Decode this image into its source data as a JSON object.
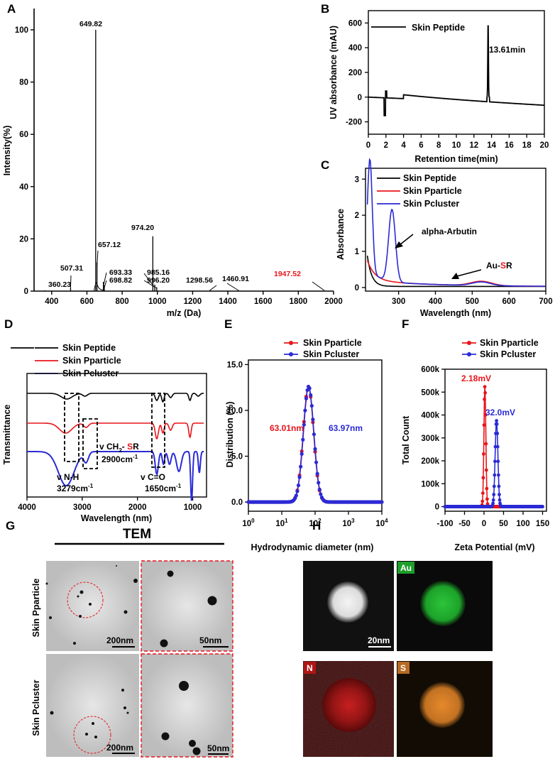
{
  "panels": {
    "a": "A",
    "b": "B",
    "c": "C",
    "d": "D",
    "e": "E",
    "f": "F",
    "g": "G",
    "h": "H"
  },
  "chart_data": [
    {
      "panel": "A",
      "type": "bar",
      "xlabel": "m/z (Da)",
      "ylabel": "Intensity(%)",
      "xlim": [
        300,
        2000
      ],
      "ylim": [
        0,
        100
      ],
      "xticks": [
        400,
        600,
        800,
        1000,
        1200,
        1400,
        1600,
        1800,
        2000
      ],
      "yticks": [
        0,
        20,
        40,
        60,
        80,
        100
      ],
      "peaks": [
        {
          "x": 360.23,
          "y": 0.3,
          "label": "360.23",
          "highlight": false
        },
        {
          "x": 507.31,
          "y": 1.2,
          "label": "507.31",
          "highlight": false
        },
        {
          "x": 649.82,
          "y": 100,
          "label": "649.82",
          "highlight": false
        },
        {
          "x": 657.12,
          "y": 11,
          "label": "657.12",
          "highlight": false
        },
        {
          "x": 693.33,
          "y": 3.5,
          "label": "693.33",
          "highlight": false
        },
        {
          "x": 698.82,
          "y": 2.2,
          "label": "698.82",
          "highlight": false
        },
        {
          "x": 974.2,
          "y": 21,
          "label": "974.20",
          "highlight": false
        },
        {
          "x": 985.16,
          "y": 2.5,
          "label": "985.16",
          "highlight": false
        },
        {
          "x": 996.2,
          "y": 1.5,
          "label": "996.20",
          "highlight": false
        },
        {
          "x": 1298.56,
          "y": 0.4,
          "label": "1298.56",
          "highlight": false
        },
        {
          "x": 1460.91,
          "y": 0.3,
          "label": "1460.91",
          "highlight": false
        },
        {
          "x": 1947.52,
          "y": 0.2,
          "label": "1947.52",
          "highlight": false
        }
      ],
      "highlight_color": "#e8141b"
    },
    {
      "panel": "B",
      "type": "line",
      "xlabel": "Retention time(min)",
      "ylabel": "UV absorbance (mAU)",
      "xlim": [
        0,
        20
      ],
      "ylim": [
        -300,
        700
      ],
      "xticks": [
        0,
        2,
        4,
        6,
        8,
        10,
        12,
        14,
        16,
        18,
        20
      ],
      "yticks": [
        -200,
        0,
        200,
        400,
        600
      ],
      "series": [
        {
          "name": "Skin Peptide",
          "color": "#000000"
        }
      ],
      "annotation": "13.61min"
    },
    {
      "panel": "C",
      "type": "line",
      "xlabel": "Wavelength (nm)",
      "ylabel": "Absorbance",
      "xlim": [
        210,
        700
      ],
      "ylim": [
        -0.1,
        3.3
      ],
      "xticks": [
        300,
        400,
        500,
        600,
        700
      ],
      "yticks": [
        0,
        1,
        2,
        3
      ],
      "series": [
        {
          "name": "Skin Peptide",
          "color": "#000000"
        },
        {
          "name": "Skin Pparticle",
          "color": "#e8141b"
        },
        {
          "name": "Skin Pcluster",
          "color": "#2a2ad6"
        }
      ],
      "annotations": [
        "alpha-Arbutin",
        "Au-",
        "S",
        "R"
      ]
    },
    {
      "panel": "D",
      "type": "line",
      "xlabel": "Wavelength (nm)",
      "ylabel": "Transmittance",
      "xlim": [
        4000,
        750
      ],
      "xticks": [
        4000,
        3000,
        2000,
        1000
      ],
      "series": [
        {
          "name": "Skin Peptide",
          "color": "#000000"
        },
        {
          "name": "Skin Pparticle",
          "color": "#e8141b"
        },
        {
          "name": "Skin Pcluster",
          "color": "#2a2ad6"
        }
      ],
      "annotations": [
        "v N-H",
        "3279cm",
        "-1",
        "v CH",
        "2",
        "- ",
        "S",
        "R",
        "2900cm",
        "-1",
        "v C=O",
        "1650cm",
        "-1"
      ]
    },
    {
      "panel": "E",
      "type": "scatter",
      "xlabel": "Hydrodynamic diameter (nm)",
      "ylabel": "Distribution (%)",
      "xscale": "log",
      "xlim": [
        1,
        10000
      ],
      "ylim": [
        -1,
        15.5
      ],
      "xticks": [
        "10",
        "10",
        "10",
        "10",
        "10"
      ],
      "xtick_exp": [
        "0",
        "1",
        "2",
        "3",
        "4"
      ],
      "yticks": [
        "0.0",
        "5.0",
        "10.0",
        "15.0"
      ],
      "series": [
        {
          "name": "Skin Pparticle",
          "color": "#e8141b",
          "peak": 63.01,
          "label": "63.01nm"
        },
        {
          "name": "Skin Pcluster",
          "color": "#2a2ad6",
          "peak": 63.97,
          "label": "63.97nm"
        }
      ]
    },
    {
      "panel": "F",
      "type": "scatter",
      "xlabel": "Zeta Potential (mV)",
      "ylabel": "Total Count",
      "xlim": [
        -100,
        160
      ],
      "ylim": [
        -20000,
        600000
      ],
      "xticks": [
        -100,
        -50,
        0,
        50,
        100,
        150
      ],
      "yticks": [
        "0",
        "100k",
        "200k",
        "300k",
        "400k",
        "500k",
        "600k"
      ],
      "series": [
        {
          "name": "Skin Pparticle",
          "color": "#e8141b",
          "peak_x": 2.18,
          "peak_y": 525000,
          "label": "2.18mV"
        },
        {
          "name": "Skin Pcluster",
          "color": "#2a2ad6",
          "peak_x": 32.0,
          "peak_y": 375000,
          "label": "32.0mV"
        }
      ]
    }
  ],
  "tem": {
    "title": "TEM",
    "rows": [
      "Skin Pparticle",
      "Skin Pcluster"
    ],
    "scales": [
      "200nm",
      "50nm",
      "200nm",
      "50nm"
    ]
  },
  "eds": {
    "labels": [
      "Au",
      "N",
      "S"
    ],
    "scale": "20nm",
    "colors": {
      "Au": "#1e9e2a",
      "N": "#b01515",
      "S": "#b86a22"
    }
  }
}
